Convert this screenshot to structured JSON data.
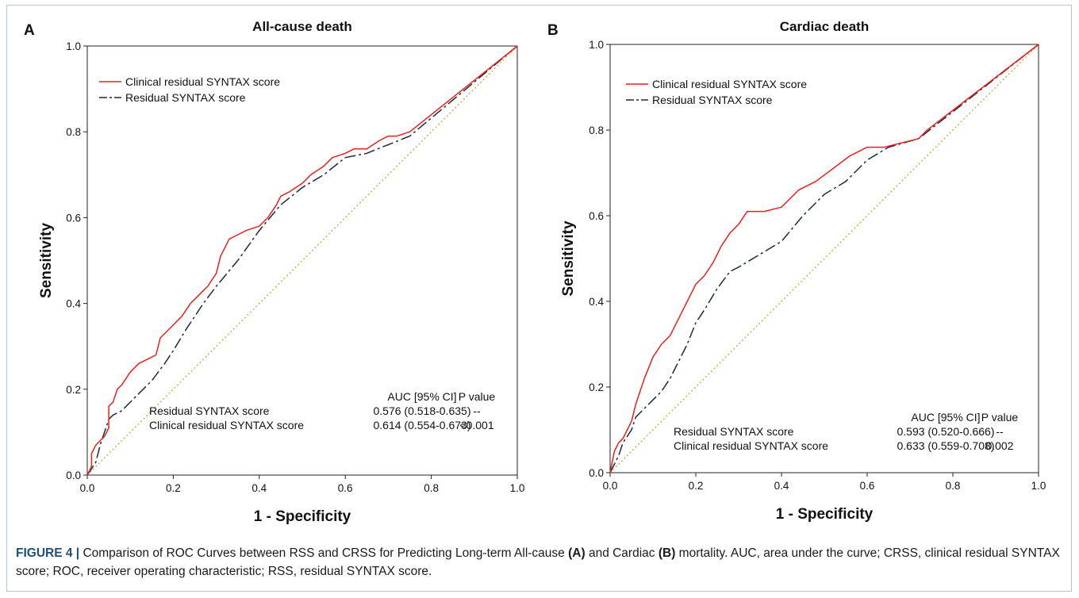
{
  "chart_data": [
    {
      "type": "line",
      "panel_label": "A",
      "title": "All-cause death",
      "xlabel": "1 - Specificity",
      "ylabel": "Sensitivity",
      "xlim": [
        0,
        1
      ],
      "ylim": [
        0,
        1
      ],
      "x_ticks": [
        "0.0",
        "0.2",
        "0.4",
        "0.6",
        "0.8",
        "1.0"
      ],
      "y_ticks": [
        "0.0",
        "0.2",
        "0.4",
        "0.6",
        "0.8",
        "1.0"
      ],
      "legend_position": "top-left",
      "series": [
        {
          "name": "Clinical residual SYNTAX score",
          "color": "#e8201e",
          "style": "solid",
          "x": [
            0.0,
            0.01,
            0.01,
            0.02,
            0.02,
            0.03,
            0.04,
            0.05,
            0.05,
            0.06,
            0.07,
            0.08,
            0.1,
            0.12,
            0.14,
            0.16,
            0.17,
            0.18,
            0.2,
            0.22,
            0.24,
            0.26,
            0.28,
            0.3,
            0.31,
            0.33,
            0.35,
            0.37,
            0.4,
            0.42,
            0.44,
            0.45,
            0.47,
            0.5,
            0.52,
            0.55,
            0.57,
            0.6,
            0.62,
            0.65,
            0.68,
            0.7,
            0.72,
            0.75,
            1.0
          ],
          "y": [
            0.0,
            0.02,
            0.05,
            0.07,
            0.07,
            0.08,
            0.09,
            0.11,
            0.16,
            0.17,
            0.2,
            0.21,
            0.24,
            0.26,
            0.27,
            0.28,
            0.32,
            0.33,
            0.35,
            0.37,
            0.4,
            0.42,
            0.44,
            0.47,
            0.51,
            0.55,
            0.56,
            0.57,
            0.58,
            0.6,
            0.63,
            0.65,
            0.66,
            0.68,
            0.7,
            0.72,
            0.74,
            0.75,
            0.76,
            0.76,
            0.78,
            0.79,
            0.79,
            0.8,
            1.0
          ]
        },
        {
          "name": "Residual SYNTAX score",
          "color": "#1c2b3c",
          "style": "dashed",
          "x": [
            0.0,
            0.02,
            0.03,
            0.04,
            0.05,
            0.06,
            0.08,
            0.1,
            0.12,
            0.15,
            0.18,
            0.2,
            0.23,
            0.27,
            0.3,
            0.35,
            0.4,
            0.45,
            0.5,
            0.55,
            0.6,
            0.65,
            0.7,
            0.75,
            1.0
          ],
          "y": [
            0.0,
            0.03,
            0.07,
            0.1,
            0.13,
            0.14,
            0.15,
            0.17,
            0.19,
            0.22,
            0.26,
            0.29,
            0.34,
            0.4,
            0.44,
            0.5,
            0.57,
            0.63,
            0.67,
            0.7,
            0.74,
            0.75,
            0.77,
            0.79,
            1.0
          ]
        }
      ],
      "reference_line": {
        "x": [
          0,
          1
        ],
        "y": [
          0,
          1
        ],
        "color": "#b5b54a",
        "style": "dotted"
      },
      "stats_table": {
        "headers": [
          "AUC [95% CI]",
          "P value"
        ],
        "rows": [
          {
            "label": "Residual SYNTAX score",
            "auc": "0.576 (0.518-0.635)",
            "p": "--"
          },
          {
            "label": "Clinical residual SYNTAX score",
            "auc": "0.614 (0.554-0.673)",
            "p": "<0.001"
          }
        ]
      }
    },
    {
      "type": "line",
      "panel_label": "B",
      "title": "Cardiac death",
      "xlabel": "1 - Specificity",
      "ylabel": "Sensitivity",
      "xlim": [
        0,
        1
      ],
      "ylim": [
        0,
        1
      ],
      "x_ticks": [
        "0.0",
        "0.2",
        "0.4",
        "0.6",
        "0.8",
        "1.0"
      ],
      "y_ticks": [
        "0.0",
        "0.2",
        "0.4",
        "0.6",
        "0.8",
        "1.0"
      ],
      "legend_position": "top-left",
      "series": [
        {
          "name": "Clinical residual SYNTAX score",
          "color": "#e8201e",
          "style": "solid",
          "x": [
            0.0,
            0.01,
            0.02,
            0.03,
            0.04,
            0.05,
            0.06,
            0.07,
            0.08,
            0.1,
            0.12,
            0.14,
            0.16,
            0.18,
            0.2,
            0.22,
            0.24,
            0.26,
            0.28,
            0.3,
            0.32,
            0.36,
            0.4,
            0.44,
            0.48,
            0.52,
            0.56,
            0.6,
            0.64,
            0.68,
            0.72,
            0.74,
            1.0
          ],
          "y": [
            0.0,
            0.05,
            0.07,
            0.08,
            0.1,
            0.12,
            0.16,
            0.19,
            0.22,
            0.27,
            0.3,
            0.32,
            0.36,
            0.4,
            0.44,
            0.46,
            0.49,
            0.53,
            0.56,
            0.58,
            0.61,
            0.61,
            0.62,
            0.66,
            0.68,
            0.71,
            0.74,
            0.76,
            0.76,
            0.77,
            0.78,
            0.8,
            1.0
          ]
        },
        {
          "name": "Residual SYNTAX score",
          "color": "#1c2b3c",
          "style": "dashed",
          "x": [
            0.0,
            0.02,
            0.03,
            0.05,
            0.06,
            0.08,
            0.1,
            0.12,
            0.14,
            0.16,
            0.18,
            0.2,
            0.22,
            0.25,
            0.28,
            0.3,
            0.35,
            0.4,
            0.45,
            0.5,
            0.55,
            0.6,
            0.65,
            0.72,
            1.0
          ],
          "y": [
            0.0,
            0.04,
            0.07,
            0.1,
            0.13,
            0.15,
            0.17,
            0.19,
            0.22,
            0.26,
            0.3,
            0.35,
            0.38,
            0.43,
            0.47,
            0.48,
            0.51,
            0.54,
            0.6,
            0.65,
            0.68,
            0.73,
            0.76,
            0.78,
            1.0
          ]
        }
      ],
      "reference_line": {
        "x": [
          0,
          1
        ],
        "y": [
          0,
          1
        ],
        "color": "#b5b54a",
        "style": "dotted"
      },
      "stats_table": {
        "headers": [
          "AUC [95% CI]",
          "P value"
        ],
        "rows": [
          {
            "label": "Residual SYNTAX score",
            "auc": "0.593 (0.520-0.666)",
            "p": "--"
          },
          {
            "label": "Clinical residual SYNTAX score",
            "auc": "0.633 (0.559-0.708)",
            "p": "0.002"
          }
        ]
      }
    }
  ],
  "caption": {
    "label": "FIGURE 4 |",
    "text_1": " Comparison of ROC Curves between RSS and CRSS for Predicting Long-term All-cause ",
    "bold_a": "(A)",
    "text_2": " and Cardiac ",
    "bold_b": "(B)",
    "text_3": " mortality. AUC, area under the curve; CRSS, clinical residual SYNTAX score; ROC, receiver operating characteristic; RSS, residual SYNTAX score."
  }
}
